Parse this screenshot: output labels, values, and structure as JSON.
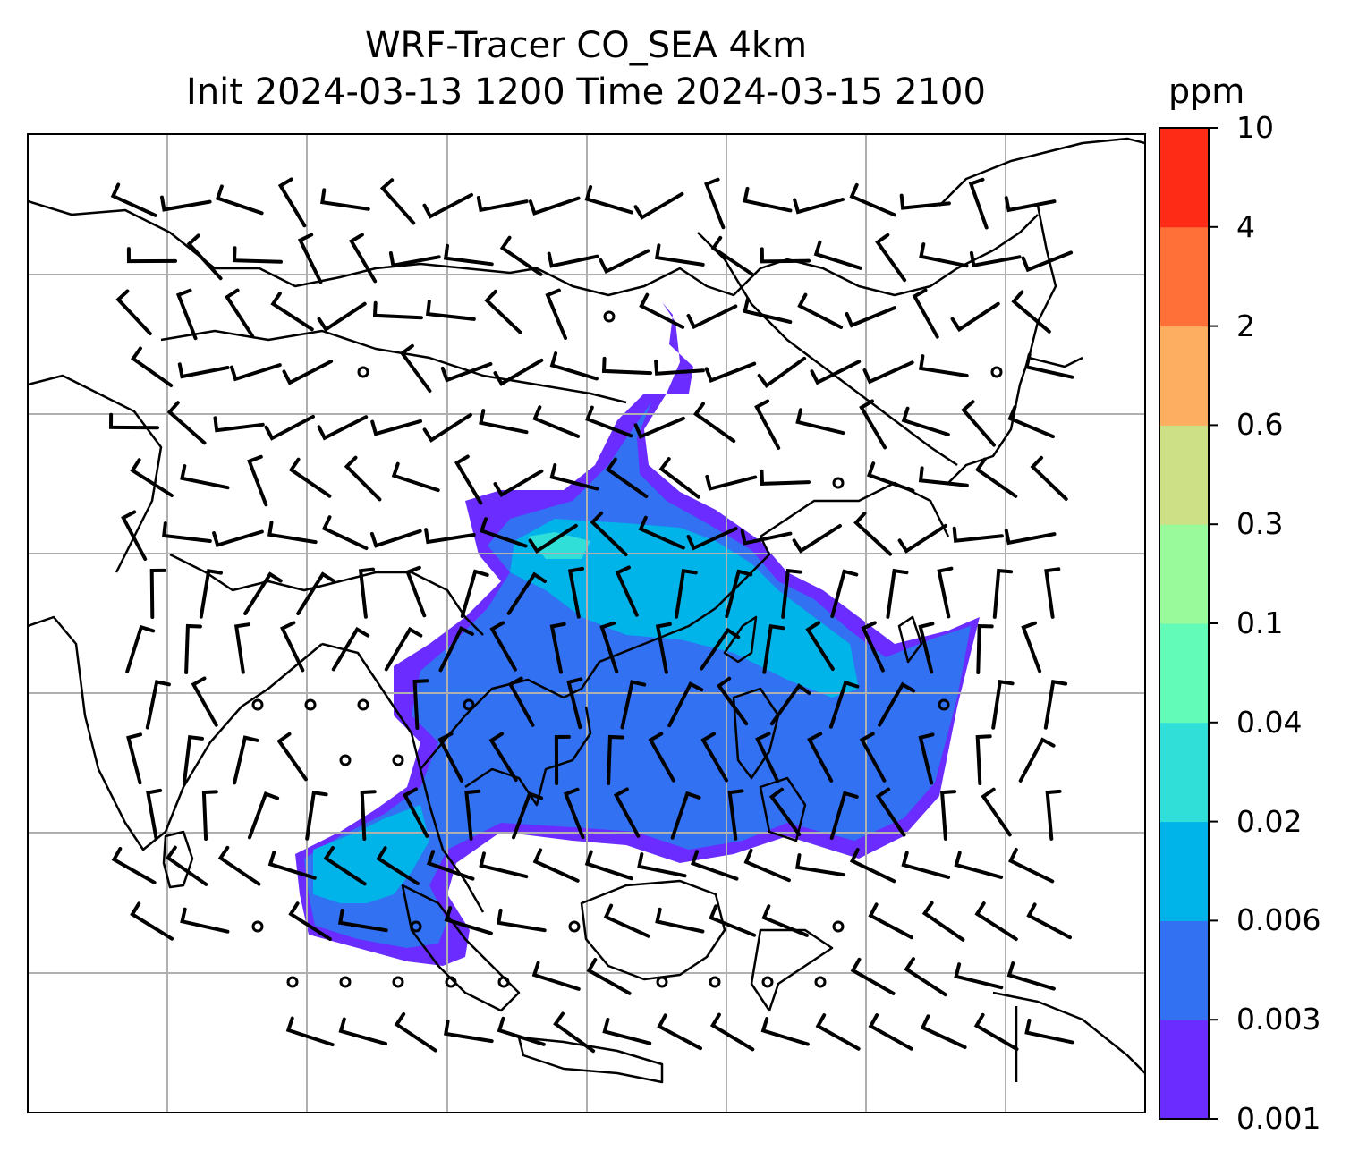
{
  "title": {
    "line1": "WRF-Tracer CO_SEA 4km",
    "line2": "Init 2024-03-13 1200 Time 2024-03-15 2100"
  },
  "colorbar": {
    "unit": "ppm",
    "levels": [
      "0.001",
      "0.003",
      "0.006",
      "0.02",
      "0.04",
      "0.1",
      "0.3",
      "0.6",
      "2",
      "4",
      "10"
    ],
    "colors": [
      "#6a2cff",
      "#3171f2",
      "#00b4ea",
      "#2fdfd8",
      "#62fbb8",
      "#98fa9a",
      "#cde086",
      "#fdae61",
      "#fe7038",
      "#fe2b16"
    ]
  },
  "map": {
    "grid": true,
    "frame_color": "#000000",
    "gridline_color": "#b0b0b0",
    "wind_barbs": "black",
    "plume_levels_present": [
      "0.001",
      "0.003",
      "0.006",
      "0.02",
      "0.04"
    ]
  }
}
